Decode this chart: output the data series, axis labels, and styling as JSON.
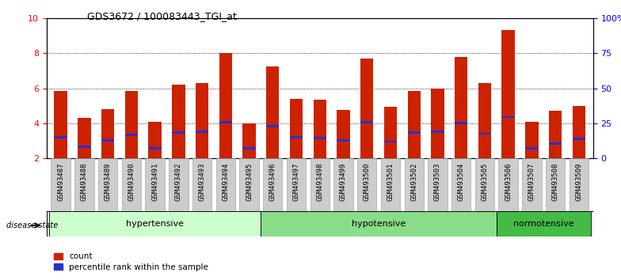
{
  "title": "GDS3672 / 100083443_TGI_at",
  "samples": [
    "GSM493487",
    "GSM493488",
    "GSM493489",
    "GSM493490",
    "GSM493491",
    "GSM493492",
    "GSM493493",
    "GSM493494",
    "GSM493495",
    "GSM493496",
    "GSM493497",
    "GSM493498",
    "GSM493499",
    "GSM493500",
    "GSM493501",
    "GSM493502",
    "GSM493503",
    "GSM493504",
    "GSM493505",
    "GSM493506",
    "GSM493507",
    "GSM493508",
    "GSM493509"
  ],
  "bar_heights": [
    5.85,
    4.3,
    4.8,
    5.85,
    4.1,
    6.2,
    6.3,
    8.0,
    4.0,
    7.25,
    5.4,
    5.35,
    4.75,
    7.7,
    4.95,
    5.85,
    6.0,
    7.8,
    6.3,
    9.3,
    4.1,
    4.7,
    5.0
  ],
  "blue_heights": [
    3.2,
    2.65,
    3.0,
    3.35,
    2.55,
    3.45,
    3.5,
    4.05,
    2.55,
    3.85,
    3.2,
    3.15,
    3.0,
    4.05,
    2.95,
    3.45,
    3.5,
    4.0,
    3.4,
    4.35,
    2.55,
    2.85,
    3.1
  ],
  "groups": [
    {
      "label": "hypertensive",
      "start": 0,
      "end": 8
    },
    {
      "label": "hypotensive",
      "start": 9,
      "end": 18
    },
    {
      "label": "normotensive",
      "start": 19,
      "end": 22
    }
  ],
  "group_colors": [
    "#ccffcc",
    "#88dd88",
    "#44bb44"
  ],
  "ylim_left": [
    2,
    10
  ],
  "yticks_left": [
    2,
    4,
    6,
    8,
    10
  ],
  "ytick_labels_right": [
    "0",
    "25",
    "50",
    "75",
    "100%"
  ],
  "bar_color": "#cc2200",
  "blue_color": "#2233cc",
  "bg_color": "#cccccc",
  "plot_bg": "#ffffff",
  "disease_state_label": "disease state",
  "legend_count": "count",
  "legend_percentile": "percentile rank within the sample"
}
